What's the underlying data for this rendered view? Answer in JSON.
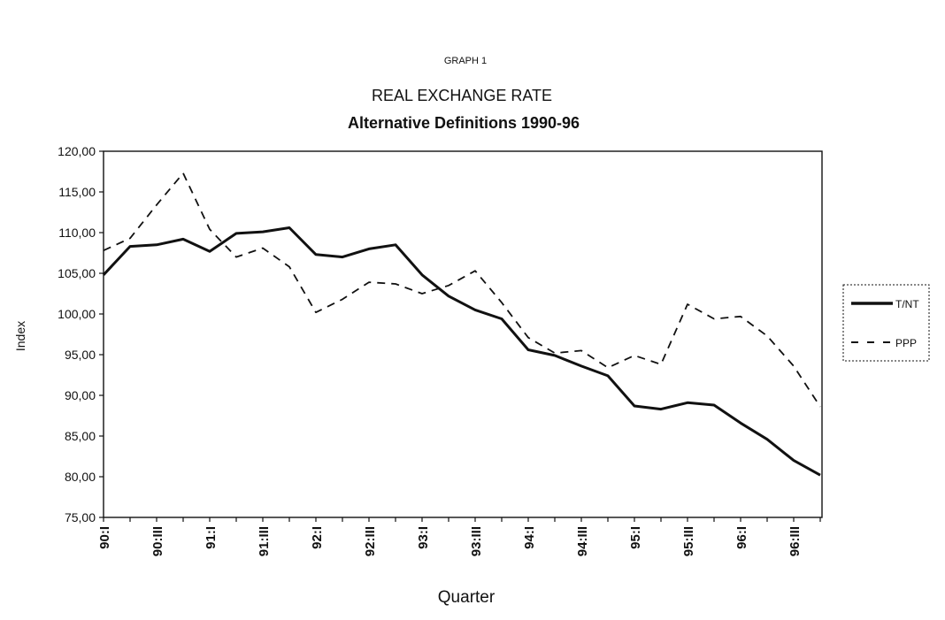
{
  "chart_data": {
    "type": "line",
    "graph_label": "GRAPH 1",
    "title": "REAL EXCHANGE RATE",
    "subtitle": "Alternative Definitions 1990-96",
    "xlabel": "Quarter",
    "ylabel": "Index",
    "ylim": [
      75,
      120
    ],
    "yticks": [
      "75,00",
      "80,00",
      "85,00",
      "90,00",
      "95,00",
      "100,00",
      "105,00",
      "110,00",
      "115,00",
      "120,00"
    ],
    "x": [
      "90:I",
      "90:II",
      "90:III",
      "90:IV",
      "91:I",
      "91:II",
      "91:III",
      "91:IV",
      "92:I",
      "92:II",
      "92:III",
      "92:IV",
      "93:I",
      "93:II",
      "93:III",
      "93:IV",
      "94:I",
      "94:II",
      "94:III",
      "94:IV",
      "95:I",
      "95:II",
      "95:III",
      "95:IV",
      "96:I",
      "96:II",
      "96:III",
      "96:IV"
    ],
    "xtick_labels": [
      {
        "index": 0,
        "label": "90:I"
      },
      {
        "index": 2,
        "label": "90:III"
      },
      {
        "index": 4,
        "label": "91:I"
      },
      {
        "index": 6,
        "label": "91:III"
      },
      {
        "index": 8,
        "label": "92:I"
      },
      {
        "index": 10,
        "label": "92:III"
      },
      {
        "index": 12,
        "label": "93:I"
      },
      {
        "index": 14,
        "label": "93:III"
      },
      {
        "index": 16,
        "label": "94:I"
      },
      {
        "index": 18,
        "label": "94:III"
      },
      {
        "index": 20,
        "label": "95:I"
      },
      {
        "index": 22,
        "label": "95:III"
      },
      {
        "index": 24,
        "label": "96:I"
      },
      {
        "index": 26,
        "label": "96:III"
      }
    ],
    "series": [
      {
        "name": "T/NT",
        "style": "solid",
        "color": "#111111",
        "values": [
          104.8,
          108.3,
          108.5,
          109.2,
          107.7,
          109.9,
          110.1,
          110.6,
          107.3,
          107.0,
          108.0,
          108.5,
          104.8,
          102.2,
          100.5,
          99.4,
          95.6,
          94.9,
          93.6,
          92.4,
          88.7,
          88.3,
          89.1,
          88.8,
          86.6,
          84.6,
          82.0,
          80.2
        ]
      },
      {
        "name": "PPP",
        "style": "dashed",
        "color": "#111111",
        "values": [
          107.8,
          109.3,
          113.4,
          117.3,
          110.4,
          107.0,
          108.1,
          105.8,
          100.2,
          101.8,
          103.9,
          103.7,
          102.5,
          103.5,
          105.3,
          101.4,
          97.1,
          95.2,
          95.5,
          93.4,
          94.9,
          93.8,
          101.2,
          99.4,
          99.7,
          97.3,
          93.6,
          88.6
        ]
      }
    ],
    "legend_position": "right",
    "grid": false
  }
}
